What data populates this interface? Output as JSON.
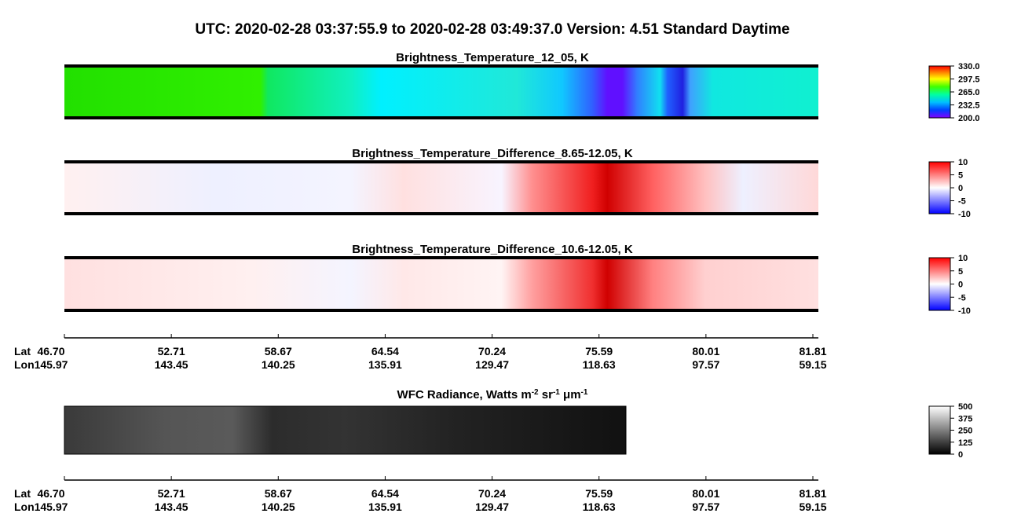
{
  "header": {
    "title": "UTC:  2020-02-28   03:37:55.9  to  2020-02-28   03:49:37.0    Version: 4.51  Standard Daytime"
  },
  "panels": [
    {
      "title": "Brightness_Temperature_12_05, K",
      "colorbar_labels": [
        "200.0",
        "232.5",
        "265.0",
        "297.5",
        "330.0"
      ]
    },
    {
      "title": "Brightness_Temperature_Difference_8.65-12.05, K",
      "colorbar_labels": [
        "-10",
        "-5",
        "0",
        "5",
        "10"
      ]
    },
    {
      "title": "Brightness_Temperature_Difference_10.6-12.05, K",
      "colorbar_labels": [
        "-10",
        "-5",
        "0",
        "5",
        "10"
      ]
    }
  ],
  "wfc": {
    "title_parts": [
      "WFC Radiance, Watts m",
      "-2",
      " sr",
      "-1",
      " μm",
      "-1"
    ],
    "colorbar_labels": [
      "0",
      "125",
      "250",
      "375",
      "500"
    ]
  },
  "axes": [
    {
      "lat_label": "Lat",
      "lon_label": "Lon",
      "lat": [
        "46.70",
        "52.71",
        "58.67",
        "64.54",
        "70.24",
        "75.59",
        "80.01",
        "81.81"
      ],
      "lon": [
        "145.97",
        "143.45",
        "140.25",
        "135.91",
        "129.47",
        "118.63",
        "97.57",
        "59.15"
      ]
    },
    {
      "lat_label": "Lat",
      "lon_label": "Lon",
      "lat": [
        "46.70",
        "52.71",
        "58.67",
        "64.54",
        "70.24",
        "75.59",
        "80.01",
        "81.81"
      ],
      "lon": [
        "145.97",
        "143.45",
        "140.25",
        "135.91",
        "129.47",
        "118.63",
        "97.57",
        "59.15"
      ]
    }
  ]
}
